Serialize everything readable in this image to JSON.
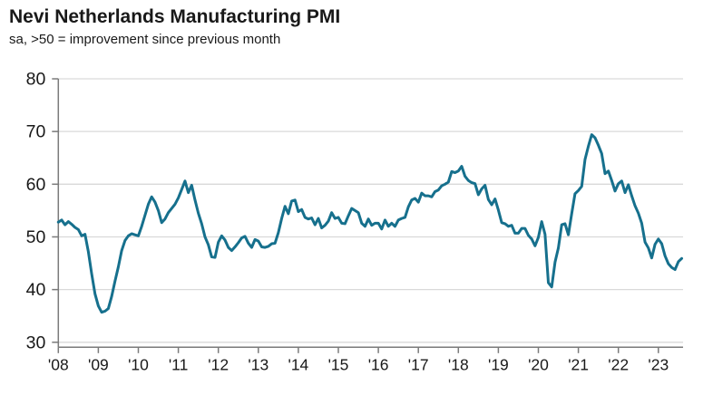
{
  "header": {
    "title": "Nevi Netherlands Manufacturing PMI",
    "subtitle": "sa, >50 = improvement since previous month"
  },
  "chart_data": {
    "type": "line",
    "title": "Nevi Netherlands Manufacturing PMI",
    "subtitle": "sa, >50 = improvement since previous month",
    "series_name": "Netherlands Manufacturing PMI (seasonally adjusted)",
    "frequency": "monthly",
    "start": "2008-01",
    "end": "2023-08",
    "reference_level": 50,
    "x_tick_labels": [
      "'08",
      "'09",
      "'10",
      "'11",
      "'12",
      "'13",
      "'14",
      "'15",
      "'16",
      "'17",
      "'18",
      "'19",
      "'20",
      "'21",
      "'22",
      "'23"
    ],
    "y_ticks": [
      30,
      40,
      50,
      60,
      70,
      80
    ],
    "ylim": [
      30,
      80
    ],
    "grid": "horizontal",
    "legend": "none",
    "values": [
      52.8,
      53.2,
      52.3,
      52.9,
      52.4,
      51.8,
      51.4,
      50.2,
      50.5,
      47.2,
      43.0,
      39.2,
      36.9,
      35.7,
      35.9,
      36.4,
      38.7,
      41.6,
      44.3,
      47.4,
      49.3,
      50.2,
      50.6,
      50.4,
      50.2,
      52.0,
      54.1,
      56.2,
      57.6,
      56.6,
      55.0,
      52.7,
      53.4,
      54.6,
      55.4,
      56.2,
      57.4,
      59.0,
      60.6,
      58.4,
      59.8,
      57.0,
      54.5,
      52.5,
      50.0,
      48.5,
      46.2,
      46.1,
      49.0,
      50.2,
      49.4,
      48.0,
      47.4,
      48.1,
      48.9,
      49.8,
      50.1,
      48.8,
      48.0,
      49.5,
      49.2,
      48.1,
      48.0,
      48.2,
      48.7,
      48.8,
      50.8,
      53.5,
      55.8,
      54.4,
      56.8,
      57.0,
      54.8,
      55.2,
      53.7,
      53.4,
      53.6,
      52.3,
      53.5,
      51.7,
      52.2,
      53.0,
      54.6,
      53.5,
      53.7,
      52.6,
      52.5,
      54.0,
      55.4,
      55.0,
      54.6,
      52.6,
      52.0,
      53.4,
      52.2,
      52.6,
      52.6,
      51.5,
      53.2,
      52.0,
      52.6,
      52.0,
      53.2,
      53.5,
      53.7,
      55.7,
      57.0,
      57.3,
      56.6,
      58.3,
      57.8,
      57.8,
      57.6,
      58.6,
      58.9,
      59.7,
      60.0,
      60.4,
      62.4,
      62.2,
      62.5,
      63.4,
      61.5,
      60.7,
      60.3,
      60.1,
      58.0,
      59.1,
      59.8,
      57.1,
      56.1,
      57.2,
      55.1,
      52.7,
      52.5,
      52.0,
      52.2,
      50.7,
      50.7,
      51.6,
      51.6,
      50.3,
      49.6,
      48.3,
      49.9,
      52.9,
      50.5,
      41.3,
      40.5,
      45.2,
      47.9,
      52.3,
      52.5,
      50.4,
      54.4,
      58.2,
      58.8,
      59.6,
      64.7,
      67.2,
      69.4,
      68.8,
      67.4,
      65.8,
      62.0,
      62.5,
      60.7,
      58.7,
      60.1,
      60.6,
      58.4,
      59.9,
      57.8,
      55.9,
      54.5,
      52.6,
      49.0,
      47.9,
      46.0,
      48.6,
      49.6,
      48.7,
      46.4,
      44.9,
      44.2,
      43.8,
      45.3,
      45.9
    ]
  },
  "colors": {
    "line": "#16708d",
    "axis": "#7a7a7a",
    "gridline": "#d9d9d9",
    "text": "#191919",
    "background": "#ffffff"
  }
}
